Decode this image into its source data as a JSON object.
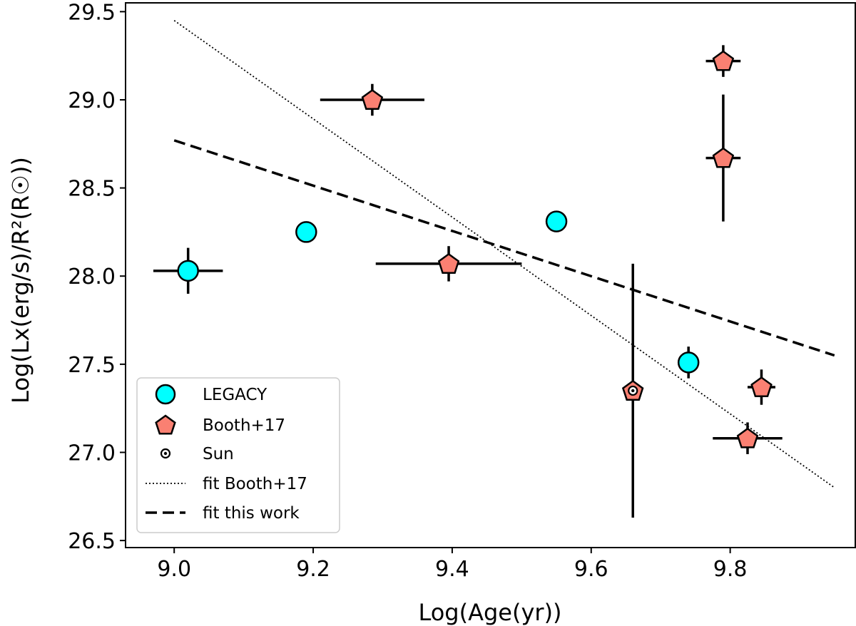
{
  "chart_data": {
    "type": "scatter",
    "xlabel": "Log(Age(yr))",
    "ylabel": "Log(Lx(erg/s)/R²(R☉))",
    "xlim": [
      8.93,
      9.98
    ],
    "ylim": [
      26.46,
      29.55
    ],
    "xticks": [
      "9.0",
      "9.2",
      "9.4",
      "9.6",
      "9.8"
    ],
    "yticks": [
      "26.5",
      "27.0",
      "27.5",
      "28.0",
      "28.5",
      "29.0",
      "29.5"
    ],
    "legend_position": "lower-left",
    "series": [
      {
        "name": "LEGACY",
        "marker": "circle",
        "color": "#00ffff",
        "points": [
          {
            "x": 9.02,
            "y": 28.03,
            "xerr": 0.05,
            "yerr": 0.13
          },
          {
            "x": 9.19,
            "y": 28.25,
            "xerr": 0,
            "yerr": 0
          },
          {
            "x": 9.55,
            "y": 28.31,
            "xerr": 0,
            "yerr": 0
          },
          {
            "x": 9.74,
            "y": 27.51,
            "xerr": 0.01,
            "yerr": 0.09
          }
        ]
      },
      {
        "name": "Booth+17",
        "marker": "pentagon",
        "color": "#fa8072",
        "points": [
          {
            "x": 9.285,
            "y": 29.0,
            "xerr": 0.075,
            "yerr": 0.09
          },
          {
            "x": 9.395,
            "y": 28.07,
            "xerr": 0.105,
            "yerr": 0.1
          },
          {
            "x": 9.66,
            "y": 27.35,
            "xerr": 0,
            "yerr": 0.72
          },
          {
            "x": 9.79,
            "y": 29.22,
            "xerr": 0.025,
            "yerr": 0.09
          },
          {
            "x": 9.79,
            "y": 28.67,
            "xerr": 0.025,
            "yerr": 0.36
          },
          {
            "x": 9.825,
            "y": 27.08,
            "xerr": 0.05,
            "yerr": 0.09
          },
          {
            "x": 9.845,
            "y": 27.37,
            "xerr": 0.02,
            "yerr": 0.1
          }
        ]
      },
      {
        "name": "Sun",
        "marker": "sun",
        "color": "#000000",
        "points": [
          {
            "x": 9.66,
            "y": 27.35
          }
        ]
      }
    ],
    "lines": [
      {
        "name": "fit Booth+17",
        "style": "dotted",
        "x": [
          9.0,
          9.95
        ],
        "y": [
          29.45,
          26.8
        ]
      },
      {
        "name": "fit this work",
        "style": "dashed",
        "x": [
          9.0,
          9.95
        ],
        "y": [
          28.77,
          27.55
        ]
      }
    ],
    "legend": [
      {
        "label": "LEGACY",
        "marker": "circle"
      },
      {
        "label": "Booth+17",
        "marker": "pentagon"
      },
      {
        "label": "Sun",
        "marker": "sun"
      },
      {
        "label": "fit Booth+17",
        "marker": "dotted"
      },
      {
        "label": "fit this work",
        "marker": "dashed"
      }
    ]
  }
}
